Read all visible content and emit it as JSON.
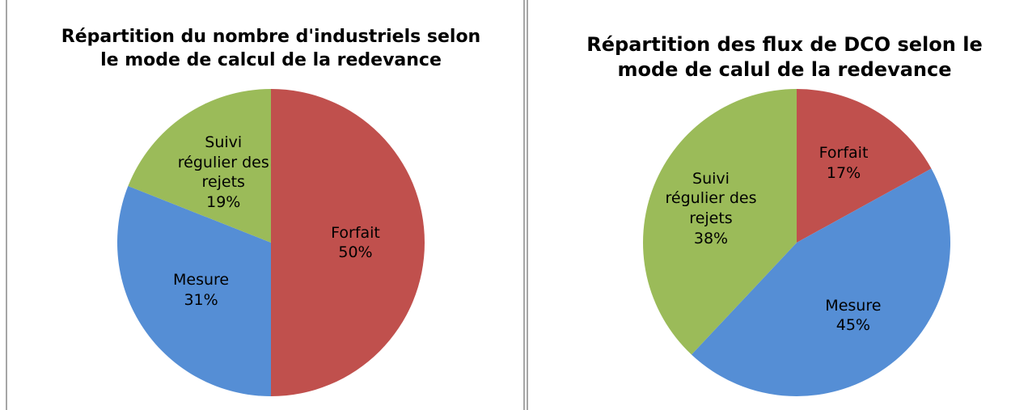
{
  "chart_data": [
    {
      "type": "pie",
      "title": "Répartition du nombre d'industriels selon le mode de calcul de la redevance",
      "categories": [
        "Forfait",
        "Mesure",
        "Suivi régulier des rejets"
      ],
      "values": [
        50,
        31,
        19
      ],
      "value_labels": [
        "50%",
        "31%",
        "19%"
      ],
      "colors": [
        "#c0504d",
        "#558ed5",
        "#9bbb59"
      ]
    },
    {
      "type": "pie",
      "title": "Répartition des flux de DCO selon le mode de calul de la redevance",
      "categories": [
        "Forfait",
        "Mesure",
        "Suivi régulier des rejets"
      ],
      "values": [
        17,
        45,
        38
      ],
      "value_labels": [
        "17%",
        "45%",
        "38%"
      ],
      "colors": [
        "#c0504d",
        "#558ed5",
        "#9bbb59"
      ]
    }
  ]
}
